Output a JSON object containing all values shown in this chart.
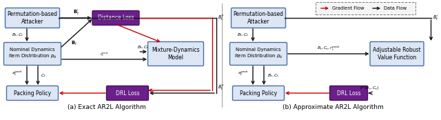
{
  "fig_width": 6.4,
  "fig_height": 1.74,
  "dpi": 100,
  "background": "#ffffff",
  "title_a": "(a) Exact AR2L Algorithm",
  "title_b": "(b) Approximate AR2L Algorithm",
  "legend_gradient": "Gradient Flow",
  "legend_data": "Data Flow",
  "box_blue_fc": "#dce6f5",
  "box_blue_ec": "#4a6fa5",
  "box_purple_fc": "#6a1f8a",
  "box_purple_ec": "#4a1060",
  "box_purple_text": "#ffffff",
  "arrow_data_color": "#111111",
  "arrow_gradient_color": "#cc0000",
  "text_color": "#000000"
}
